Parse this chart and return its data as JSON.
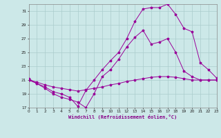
{
  "xlabel": "Windchill (Refroidissement éolien,°C)",
  "background_color": "#cce8e8",
  "grid_color": "#aacccc",
  "line_color": "#990099",
  "xmin": 0,
  "xmax": 23,
  "ymin": 17,
  "ymax": 32,
  "yticks": [
    17,
    19,
    21,
    23,
    25,
    27,
    29,
    31
  ],
  "xticks": [
    0,
    1,
    2,
    3,
    4,
    5,
    6,
    7,
    8,
    9,
    10,
    11,
    12,
    13,
    14,
    15,
    16,
    17,
    18,
    19,
    20,
    21,
    22,
    23
  ],
  "series": [
    {
      "x": [
        0,
        1,
        2,
        3,
        4,
        5,
        6,
        7,
        8,
        9,
        10,
        11,
        12,
        13,
        14,
        15,
        16,
        17,
        18,
        19,
        20,
        21,
        22,
        23
      ],
      "y": [
        21.0,
        20.7,
        20.3,
        20.0,
        19.8,
        19.6,
        19.4,
        19.6,
        19.8,
        20.0,
        20.3,
        20.5,
        20.8,
        21.0,
        21.2,
        21.4,
        21.5,
        21.5,
        21.4,
        21.2,
        21.0,
        21.0,
        21.0,
        21.0
      ]
    },
    {
      "x": [
        0,
        1,
        2,
        3,
        4,
        5,
        6,
        7,
        8,
        9,
        10,
        11,
        12,
        13,
        14,
        15,
        16,
        17,
        18,
        19,
        20,
        21,
        22,
        23
      ],
      "y": [
        21.0,
        20.5,
        19.8,
        19.0,
        18.5,
        18.2,
        17.8,
        17.0,
        19.0,
        21.5,
        22.5,
        24.0,
        25.8,
        27.2,
        28.2,
        26.2,
        26.5,
        27.0,
        25.0,
        22.3,
        21.5,
        21.0,
        21.0,
        21.0
      ]
    },
    {
      "x": [
        0,
        1,
        2,
        3,
        4,
        5,
        6,
        7,
        8,
        9,
        10,
        11,
        12,
        13,
        14,
        15,
        16,
        17,
        18,
        19,
        20,
        21,
        22,
        23
      ],
      "y": [
        21.2,
        20.5,
        20.0,
        19.3,
        19.0,
        18.5,
        17.2,
        19.5,
        21.0,
        22.5,
        23.8,
        25.0,
        27.0,
        29.5,
        31.3,
        31.5,
        31.5,
        32.0,
        30.5,
        28.5,
        28.0,
        23.5,
        22.5,
        21.3
      ]
    }
  ]
}
